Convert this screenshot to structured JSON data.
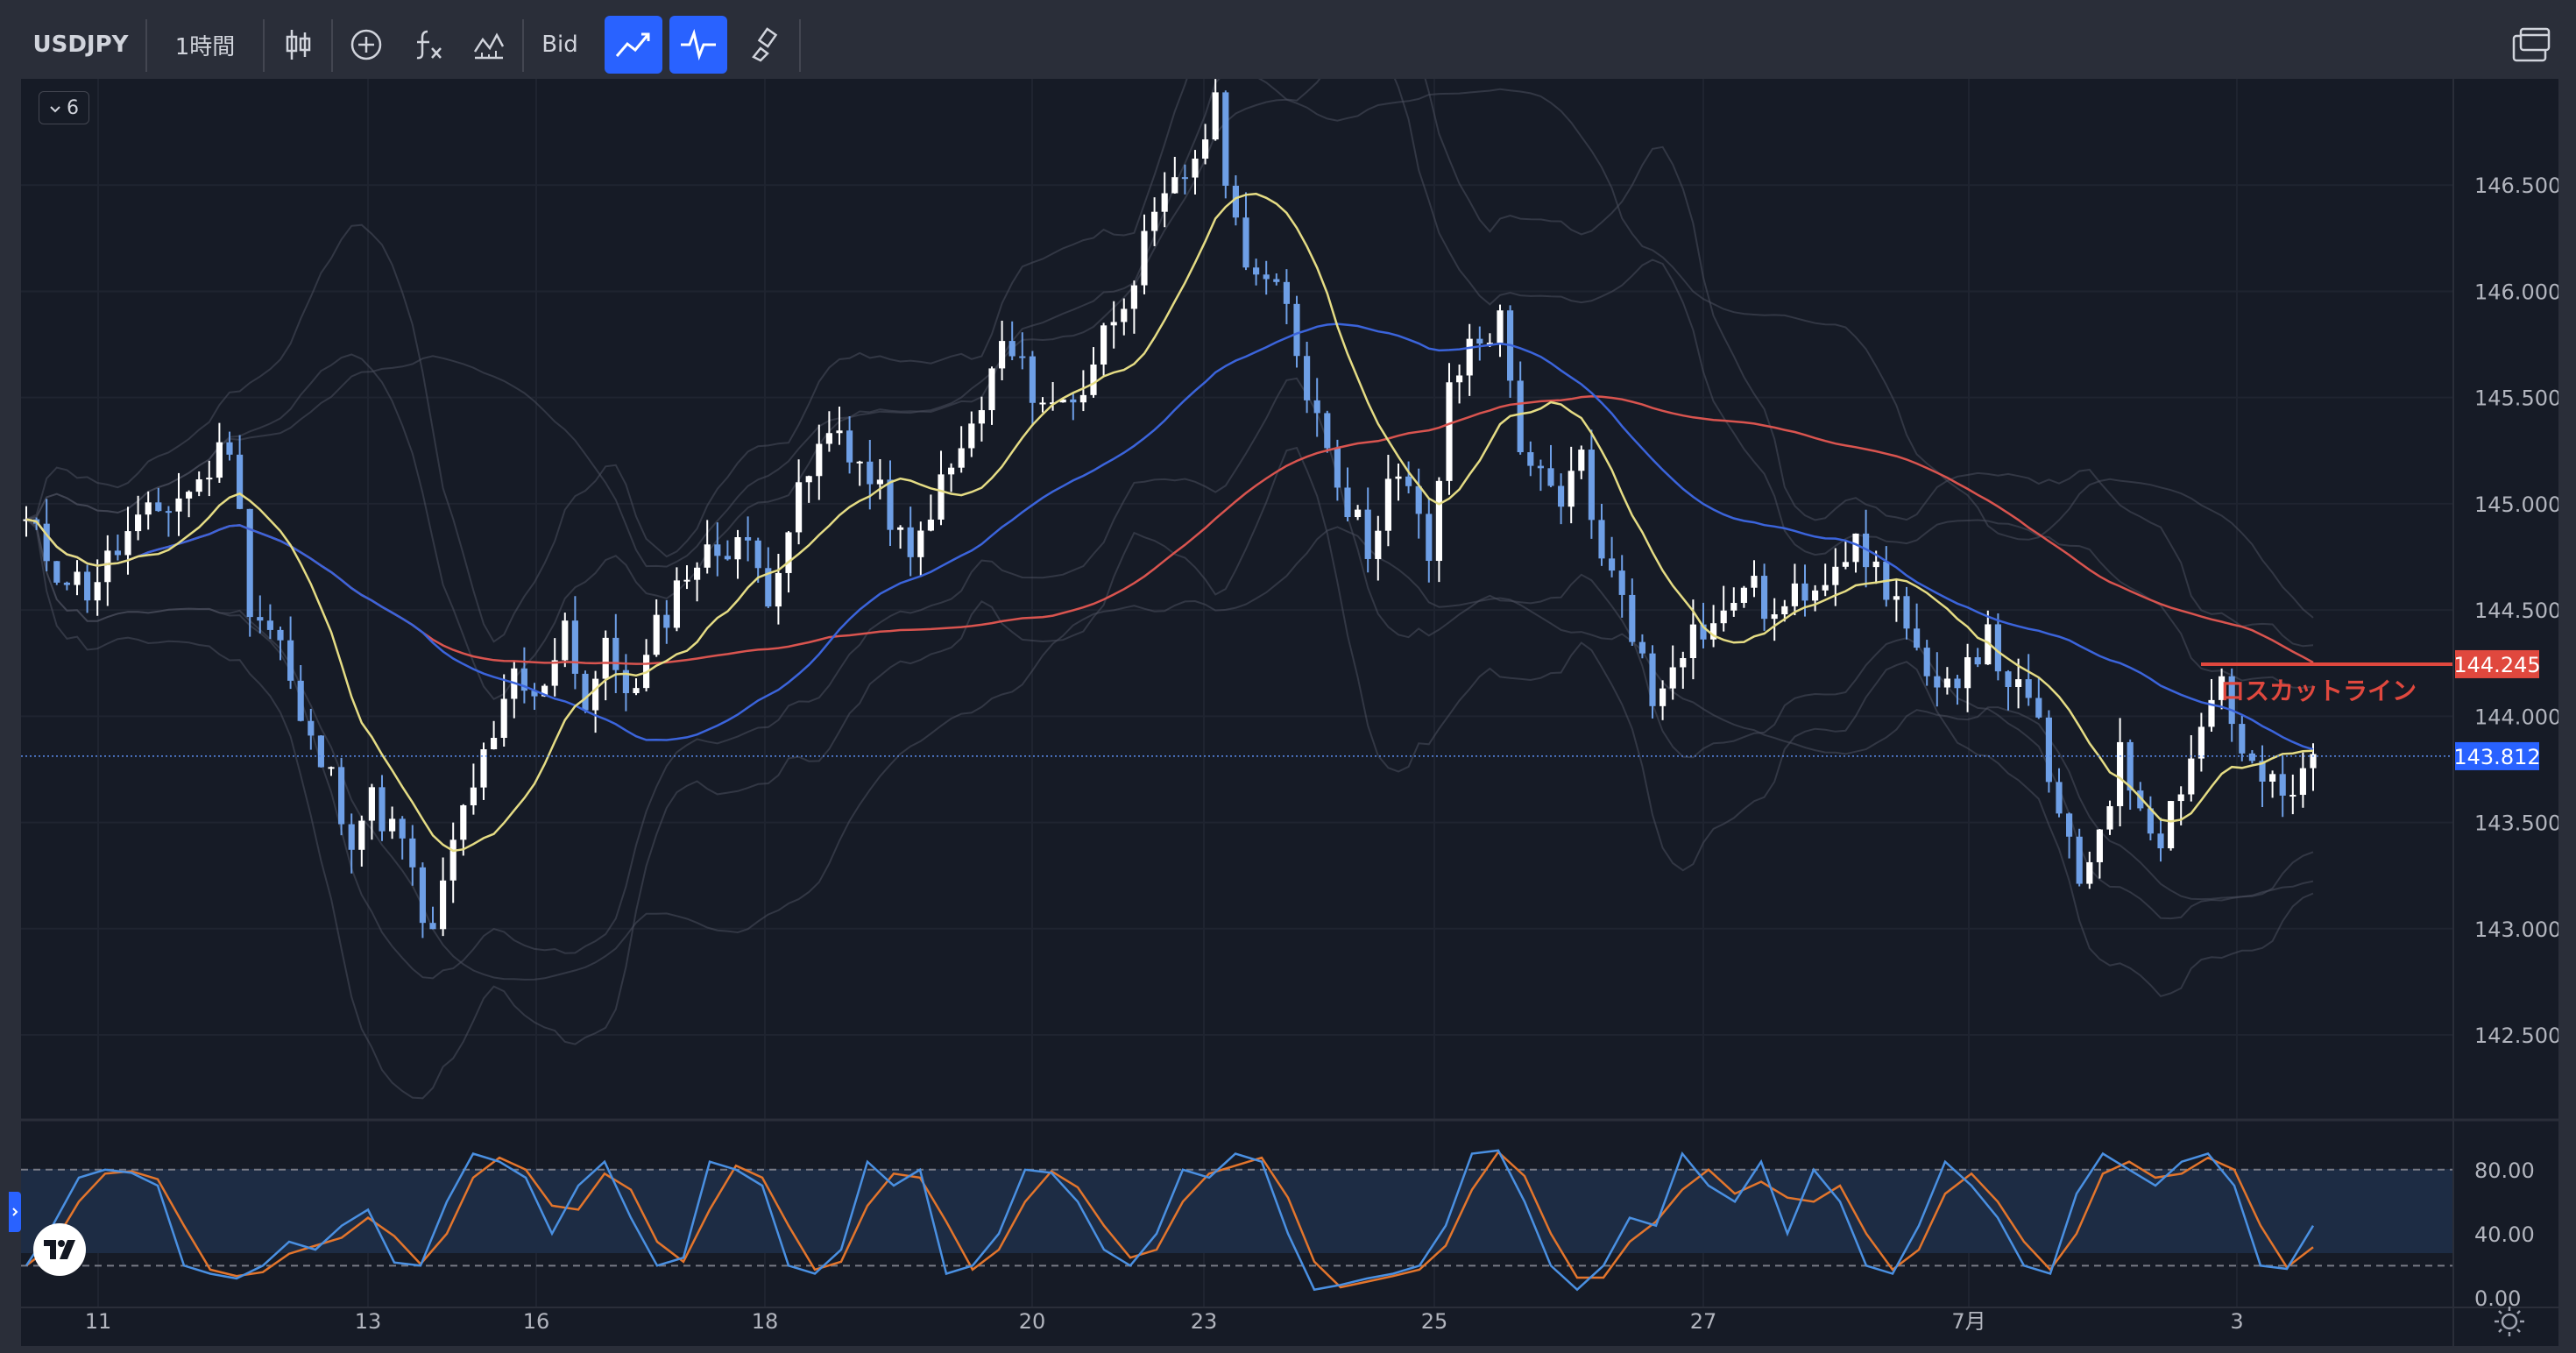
{
  "toolbar": {
    "symbol": "USDJPY",
    "interval": "1時間",
    "price_type": "Bid",
    "icons": [
      "candles-icon",
      "add-indicator-icon",
      "fx-icon",
      "compare-icon",
      "trend-icon",
      "pulse-icon",
      "brush-icon",
      "layout-icon"
    ]
  },
  "indicator_collapse": {
    "label": "6"
  },
  "colors": {
    "background": "#161b26",
    "grid": "#1f2430",
    "candle": "#6e9fe6",
    "candle_up": "#ffffff",
    "ma_short": "#e5dc84",
    "ma_mid": "#3b64db",
    "ma_long": "#d9544f",
    "band": "#4a4f5c",
    "stoch_k": "#4a90e2",
    "stoch_d": "#e3752c",
    "losscut": "#e0483e",
    "last_price": "#2962ff"
  },
  "chart_data": [
    {
      "type": "candlestick",
      "symbol": "USDJPY",
      "timeframe": "1時間",
      "y_ticks": [
        "146.500",
        "146.000",
        "145.500",
        "145.000",
        "144.500",
        "144.000",
        "143.500",
        "143.000",
        "142.500"
      ],
      "ylim": [
        142.1,
        147.0
      ],
      "x_ticks": [
        "11",
        "13",
        "16",
        "18",
        "20",
        "23",
        "25",
        "27",
        "7月",
        "3"
      ],
      "close_path": [
        [
          0,
          144.9
        ],
        [
          3,
          144.7
        ],
        [
          6,
          144.6
        ],
        [
          10,
          144.85
        ],
        [
          14,
          145.0
        ],
        [
          17,
          145.1
        ],
        [
          20,
          145.3
        ],
        [
          22,
          144.55
        ],
        [
          25,
          144.35
        ],
        [
          27,
          143.95
        ],
        [
          30,
          143.7
        ],
        [
          32,
          143.45
        ],
        [
          34,
          143.6
        ],
        [
          37,
          143.4
        ],
        [
          39,
          143.05
        ],
        [
          40,
          142.95
        ],
        [
          42,
          143.4
        ],
        [
          44,
          143.7
        ],
        [
          46,
          143.85
        ],
        [
          48,
          144.2
        ],
        [
          50,
          144.05
        ],
        [
          53,
          144.45
        ],
        [
          55,
          144.05
        ],
        [
          57,
          144.3
        ],
        [
          60,
          144.1
        ],
        [
          62,
          144.4
        ],
        [
          65,
          144.7
        ],
        [
          67,
          144.75
        ],
        [
          70,
          144.85
        ],
        [
          73,
          144.6
        ],
        [
          75,
          144.9
        ],
        [
          78,
          145.25
        ],
        [
          80,
          145.35
        ],
        [
          83,
          145.1
        ],
        [
          85,
          144.95
        ],
        [
          87,
          144.7
        ],
        [
          89,
          145.0
        ],
        [
          91,
          145.15
        ],
        [
          94,
          145.45
        ],
        [
          96,
          145.75
        ],
        [
          99,
          145.55
        ],
        [
          101,
          145.45
        ],
        [
          104,
          145.55
        ],
        [
          106,
          145.8
        ],
        [
          108,
          146.0
        ],
        [
          110,
          146.2
        ],
        [
          112,
          146.4
        ],
        [
          114,
          146.55
        ],
        [
          117,
          146.85
        ],
        [
          119,
          146.3
        ],
        [
          121,
          146.1
        ],
        [
          124,
          145.9
        ],
        [
          126,
          145.55
        ],
        [
          128,
          145.3
        ],
        [
          130,
          145.0
        ],
        [
          132,
          144.8
        ],
        [
          134,
          145.1
        ],
        [
          136,
          145.05
        ],
        [
          138,
          144.75
        ],
        [
          140,
          145.5
        ],
        [
          142,
          145.75
        ],
        [
          145,
          145.85
        ],
        [
          147,
          145.3
        ],
        [
          149,
          145.1
        ],
        [
          151,
          144.95
        ],
        [
          153,
          145.25
        ],
        [
          155,
          144.7
        ],
        [
          157,
          144.6
        ],
        [
          159,
          144.25
        ],
        [
          160,
          144.05
        ],
        [
          162,
          144.3
        ],
        [
          164,
          144.4
        ],
        [
          167,
          144.45
        ],
        [
          169,
          144.65
        ],
        [
          172,
          144.45
        ],
        [
          175,
          144.6
        ],
        [
          177,
          144.7
        ],
        [
          179,
          144.8
        ],
        [
          181,
          144.75
        ],
        [
          184,
          144.55
        ],
        [
          186,
          144.25
        ],
        [
          188,
          144.05
        ],
        [
          191,
          144.3
        ],
        [
          193,
          144.35
        ],
        [
          196,
          144.1
        ],
        [
          198,
          143.95
        ],
        [
          200,
          143.5
        ],
        [
          202,
          143.2
        ],
        [
          204,
          143.5
        ],
        [
          206,
          143.8
        ],
        [
          208,
          143.6
        ],
        [
          210,
          143.45
        ],
        [
          212,
          143.7
        ],
        [
          214,
          143.95
        ],
        [
          216,
          144.2
        ],
        [
          218,
          143.8
        ],
        [
          220,
          143.7
        ],
        [
          222,
          143.6
        ],
        [
          224,
          143.7
        ],
        [
          225,
          143.8
        ]
      ],
      "series": [
        {
          "type": "bollinger_bands"
        },
        {
          "type": "moving_average",
          "color": "#e5dc84"
        },
        {
          "type": "moving_average",
          "color": "#3b64db"
        },
        {
          "type": "moving_average",
          "color": "#d9544f"
        }
      ],
      "annotations": [
        {
          "label": "ロスカットライン",
          "value": 144.245,
          "price_label": "144.245"
        }
      ],
      "last_price": {
        "value": 143.812,
        "label": "143.812"
      }
    },
    {
      "type": "line",
      "indicator": "stochastic",
      "y_ticks": [
        "80.00",
        "40.00",
        "0.00"
      ],
      "ylim": [
        -5,
        110
      ],
      "levels": [
        80,
        20
      ],
      "series": [
        {
          "values": [
            20,
            45,
            75,
            80,
            78,
            70,
            20,
            15,
            12,
            20,
            35,
            30,
            45,
            55,
            22,
            20,
            60,
            90,
            85,
            75,
            40,
            70,
            85,
            50,
            20,
            25,
            85,
            80,
            70,
            20,
            15,
            30,
            85,
            70,
            80,
            15,
            20,
            40,
            80,
            78,
            60,
            30,
            20,
            40,
            80,
            75,
            90,
            85,
            40,
            5,
            8,
            12,
            15,
            20,
            45,
            90,
            92,
            60,
            20,
            5,
            20,
            50,
            45,
            90,
            70,
            60,
            85,
            40,
            80,
            60,
            20,
            15,
            45,
            85,
            70,
            50,
            20,
            15,
            65,
            90,
            80,
            70,
            85,
            90,
            70,
            20,
            18,
            45
          ]
        }
      ]
    }
  ]
}
